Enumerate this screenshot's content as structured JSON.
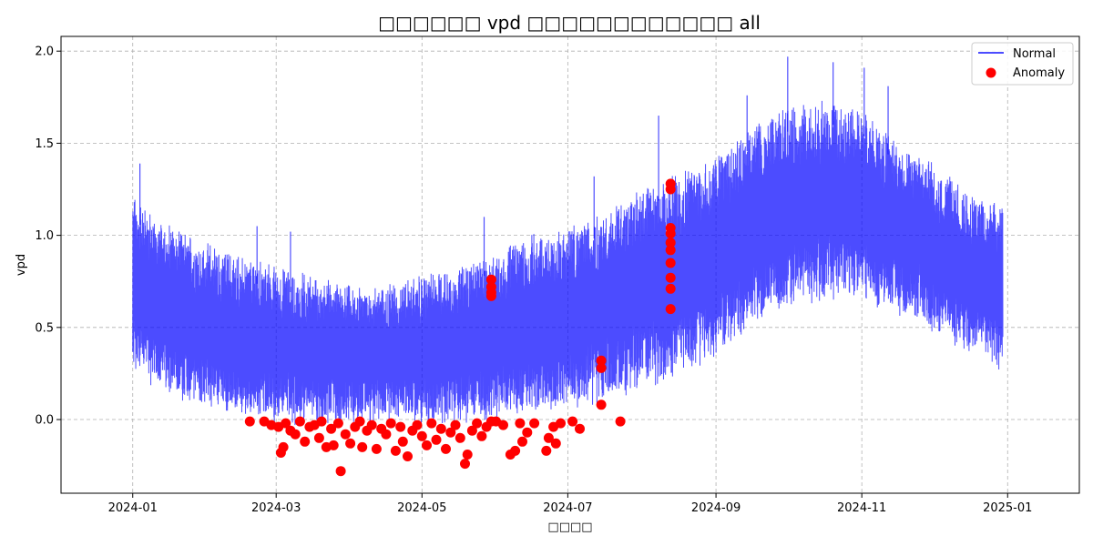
{
  "chart_data": {
    "type": "line",
    "title": "□□□□□□ vpd □□□□□□□□□□□□ all",
    "xlabel": "□□□□",
    "ylabel": "vpd",
    "xlim": [
      "2023-12-02",
      "2025-01-31"
    ],
    "ylim": [
      -0.4,
      2.08
    ],
    "grid": true,
    "legend_position": "top-right",
    "x_ticks": [
      "2024-01",
      "2024-03",
      "2024-05",
      "2024-07",
      "2024-09",
      "2024-11",
      "2025-01"
    ],
    "y_ticks": [
      0.0,
      0.5,
      1.0,
      1.5,
      2.0
    ],
    "y_tick_labels": [
      "0.0",
      "0.5",
      "1.0",
      "1.5",
      "2.0"
    ],
    "series": [
      {
        "name": "Normal",
        "style": "line",
        "color": "#0000ff",
        "x": [
          "2024-01-01",
          "2024-01-08",
          "2024-01-15",
          "2024-01-22",
          "2024-01-29",
          "2024-02-05",
          "2024-02-12",
          "2024-02-19",
          "2024-02-26",
          "2024-03-04",
          "2024-03-11",
          "2024-03-18",
          "2024-03-25",
          "2024-04-01",
          "2024-04-08",
          "2024-04-15",
          "2024-04-22",
          "2024-04-29",
          "2024-05-06",
          "2024-05-13",
          "2024-05-20",
          "2024-05-27",
          "2024-06-03",
          "2024-06-10",
          "2024-06-17",
          "2024-06-24",
          "2024-07-01",
          "2024-07-08",
          "2024-07-15",
          "2024-07-22",
          "2024-07-29",
          "2024-08-05",
          "2024-08-12",
          "2024-08-19",
          "2024-08-26",
          "2024-09-02",
          "2024-09-09",
          "2024-09-16",
          "2024-09-23",
          "2024-09-30",
          "2024-10-07",
          "2024-10-14",
          "2024-10-21",
          "2024-10-28",
          "2024-11-04",
          "2024-11-11",
          "2024-11-18",
          "2024-11-25",
          "2024-12-02",
          "2024-12-09",
          "2024-12-16",
          "2024-12-23",
          "2024-12-30"
        ],
        "low": [
          0.28,
          0.22,
          0.18,
          0.12,
          0.1,
          0.08,
          0.05,
          0.04,
          0.02,
          0.0,
          0.0,
          0.0,
          0.0,
          0.0,
          0.0,
          0.0,
          0.0,
          0.0,
          0.0,
          0.0,
          0.0,
          0.02,
          0.03,
          0.04,
          0.05,
          0.06,
          0.08,
          0.1,
          0.12,
          0.15,
          0.18,
          0.2,
          0.22,
          0.28,
          0.32,
          0.38,
          0.45,
          0.52,
          0.58,
          0.62,
          0.65,
          0.66,
          0.68,
          0.7,
          0.66,
          0.62,
          0.58,
          0.54,
          0.48,
          0.42,
          0.38,
          0.34,
          0.3
        ],
        "high": [
          1.2,
          1.1,
          1.05,
          1.0,
          0.95,
          0.92,
          0.88,
          0.85,
          0.82,
          0.8,
          0.78,
          0.74,
          0.72,
          0.7,
          0.7,
          0.72,
          0.74,
          0.75,
          0.78,
          0.8,
          0.82,
          0.88,
          0.92,
          0.95,
          0.98,
          1.0,
          1.02,
          1.06,
          1.1,
          1.15,
          1.22,
          1.28,
          1.3,
          1.34,
          1.38,
          1.42,
          1.5,
          1.58,
          1.62,
          1.66,
          1.68,
          1.7,
          1.7,
          1.68,
          1.62,
          1.55,
          1.48,
          1.42,
          1.35,
          1.28,
          1.22,
          1.18,
          1.12
        ],
        "peaks": [
          {
            "x": "2024-01-04",
            "y": 1.39
          },
          {
            "x": "2024-02-22",
            "y": 1.05
          },
          {
            "x": "2024-03-07",
            "y": 1.02
          },
          {
            "x": "2024-05-27",
            "y": 1.1
          },
          {
            "x": "2024-07-12",
            "y": 1.32
          },
          {
            "x": "2024-08-08",
            "y": 1.65
          },
          {
            "x": "2024-09-14",
            "y": 1.76
          },
          {
            "x": "2024-10-01",
            "y": 1.97
          },
          {
            "x": "2024-10-20",
            "y": 1.94
          },
          {
            "x": "2024-11-02",
            "y": 1.91
          },
          {
            "x": "2024-11-12",
            "y": 1.81
          }
        ]
      },
      {
        "name": "Anomaly",
        "style": "scatter",
        "color": "#ff0000",
        "points": [
          {
            "x": "2024-02-19",
            "y": -0.01
          },
          {
            "x": "2024-02-25",
            "y": -0.01
          },
          {
            "x": "2024-02-28",
            "y": -0.03
          },
          {
            "x": "2024-03-02",
            "y": -0.04
          },
          {
            "x": "2024-03-03",
            "y": -0.18
          },
          {
            "x": "2024-03-04",
            "y": -0.15
          },
          {
            "x": "2024-03-05",
            "y": -0.02
          },
          {
            "x": "2024-03-07",
            "y": -0.06
          },
          {
            "x": "2024-03-09",
            "y": -0.08
          },
          {
            "x": "2024-03-11",
            "y": -0.01
          },
          {
            "x": "2024-03-13",
            "y": -0.12
          },
          {
            "x": "2024-03-15",
            "y": -0.04
          },
          {
            "x": "2024-03-17",
            "y": -0.03
          },
          {
            "x": "2024-03-19",
            "y": -0.1
          },
          {
            "x": "2024-03-20",
            "y": -0.01
          },
          {
            "x": "2024-03-22",
            "y": -0.15
          },
          {
            "x": "2024-03-24",
            "y": -0.05
          },
          {
            "x": "2024-03-25",
            "y": -0.14
          },
          {
            "x": "2024-03-27",
            "y": -0.02
          },
          {
            "x": "2024-03-28",
            "y": -0.28
          },
          {
            "x": "2024-03-30",
            "y": -0.08
          },
          {
            "x": "2024-04-01",
            "y": -0.13
          },
          {
            "x": "2024-04-03",
            "y": -0.04
          },
          {
            "x": "2024-04-05",
            "y": -0.01
          },
          {
            "x": "2024-04-06",
            "y": -0.15
          },
          {
            "x": "2024-04-08",
            "y": -0.06
          },
          {
            "x": "2024-04-10",
            "y": -0.03
          },
          {
            "x": "2024-04-12",
            "y": -0.16
          },
          {
            "x": "2024-04-14",
            "y": -0.05
          },
          {
            "x": "2024-04-16",
            "y": -0.08
          },
          {
            "x": "2024-04-18",
            "y": -0.02
          },
          {
            "x": "2024-04-20",
            "y": -0.17
          },
          {
            "x": "2024-04-22",
            "y": -0.04
          },
          {
            "x": "2024-04-23",
            "y": -0.12
          },
          {
            "x": "2024-04-25",
            "y": -0.2
          },
          {
            "x": "2024-04-27",
            "y": -0.06
          },
          {
            "x": "2024-04-29",
            "y": -0.03
          },
          {
            "x": "2024-05-01",
            "y": -0.09
          },
          {
            "x": "2024-05-03",
            "y": -0.14
          },
          {
            "x": "2024-05-05",
            "y": -0.02
          },
          {
            "x": "2024-05-07",
            "y": -0.11
          },
          {
            "x": "2024-05-09",
            "y": -0.05
          },
          {
            "x": "2024-05-11",
            "y": -0.16
          },
          {
            "x": "2024-05-13",
            "y": -0.07
          },
          {
            "x": "2024-05-15",
            "y": -0.03
          },
          {
            "x": "2024-05-17",
            "y": -0.1
          },
          {
            "x": "2024-05-19",
            "y": -0.24
          },
          {
            "x": "2024-05-20",
            "y": -0.19
          },
          {
            "x": "2024-05-22",
            "y": -0.06
          },
          {
            "x": "2024-05-24",
            "y": -0.02
          },
          {
            "x": "2024-05-26",
            "y": -0.09
          },
          {
            "x": "2024-05-28",
            "y": -0.04
          },
          {
            "x": "2024-05-30",
            "y": -0.01
          },
          {
            "x": "2024-06-01",
            "y": -0.01
          },
          {
            "x": "2024-06-04",
            "y": -0.03
          },
          {
            "x": "2024-06-07",
            "y": -0.19
          },
          {
            "x": "2024-06-09",
            "y": -0.17
          },
          {
            "x": "2024-06-11",
            "y": -0.02
          },
          {
            "x": "2024-06-12",
            "y": -0.12
          },
          {
            "x": "2024-06-14",
            "y": -0.07
          },
          {
            "x": "2024-06-17",
            "y": -0.02
          },
          {
            "x": "2024-06-22",
            "y": -0.17
          },
          {
            "x": "2024-06-23",
            "y": -0.1
          },
          {
            "x": "2024-06-25",
            "y": -0.04
          },
          {
            "x": "2024-06-26",
            "y": -0.13
          },
          {
            "x": "2024-06-28",
            "y": -0.02
          },
          {
            "x": "2024-07-03",
            "y": -0.01
          },
          {
            "x": "2024-07-06",
            "y": -0.05
          },
          {
            "x": "2024-07-23",
            "y": -0.01
          },
          {
            "x": "2024-05-30",
            "y": 0.67
          },
          {
            "x": "2024-05-30",
            "y": 0.69
          },
          {
            "x": "2024-05-30",
            "y": 0.72
          },
          {
            "x": "2024-05-30",
            "y": 0.76
          },
          {
            "x": "2024-07-15",
            "y": 0.28
          },
          {
            "x": "2024-07-15",
            "y": 0.32
          },
          {
            "x": "2024-07-15",
            "y": 0.08
          },
          {
            "x": "2024-08-13",
            "y": 0.6
          },
          {
            "x": "2024-08-13",
            "y": 0.71
          },
          {
            "x": "2024-08-13",
            "y": 0.77
          },
          {
            "x": "2024-08-13",
            "y": 0.85
          },
          {
            "x": "2024-08-13",
            "y": 0.92
          },
          {
            "x": "2024-08-13",
            "y": 0.96
          },
          {
            "x": "2024-08-13",
            "y": 1.01
          },
          {
            "x": "2024-08-13",
            "y": 1.04
          },
          {
            "x": "2024-08-13",
            "y": 1.25
          },
          {
            "x": "2024-08-13",
            "y": 1.28
          }
        ]
      }
    ]
  },
  "colors": {
    "normal_line": "#0000ff",
    "anomaly_marker": "#ff0000",
    "grid": "#b0b0b0",
    "axes": "#000000"
  }
}
